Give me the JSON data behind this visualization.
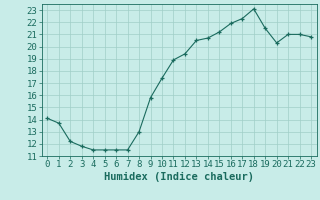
{
  "xlabel": "Humidex (Indice chaleur)",
  "x": [
    0,
    1,
    2,
    3,
    4,
    5,
    6,
    7,
    8,
    9,
    10,
    11,
    12,
    13,
    14,
    15,
    16,
    17,
    18,
    19,
    20,
    21,
    22,
    23
  ],
  "y": [
    14.1,
    13.7,
    12.2,
    11.8,
    11.5,
    11.5,
    11.5,
    11.5,
    13.0,
    15.8,
    17.4,
    18.9,
    19.4,
    20.5,
    20.7,
    21.2,
    21.9,
    22.3,
    23.1,
    21.5,
    20.3,
    21.0,
    21.0,
    20.8
  ],
  "line_color": "#1a6b5e",
  "marker": "+",
  "bg_color": "#c8ece8",
  "grid_color": "#a0cfc8",
  "xlim": [
    -0.5,
    23.5
  ],
  "ylim": [
    11.0,
    23.5
  ],
  "yticks": [
    11,
    12,
    13,
    14,
    15,
    16,
    17,
    18,
    19,
    20,
    21,
    22,
    23
  ],
  "xticks": [
    0,
    1,
    2,
    3,
    4,
    5,
    6,
    7,
    8,
    9,
    10,
    11,
    12,
    13,
    14,
    15,
    16,
    17,
    18,
    19,
    20,
    21,
    22,
    23
  ],
  "tick_color": "#1a6b5e",
  "label_color": "#1a6b5e",
  "font_size": 6.5,
  "xlabel_fontsize": 7.5
}
